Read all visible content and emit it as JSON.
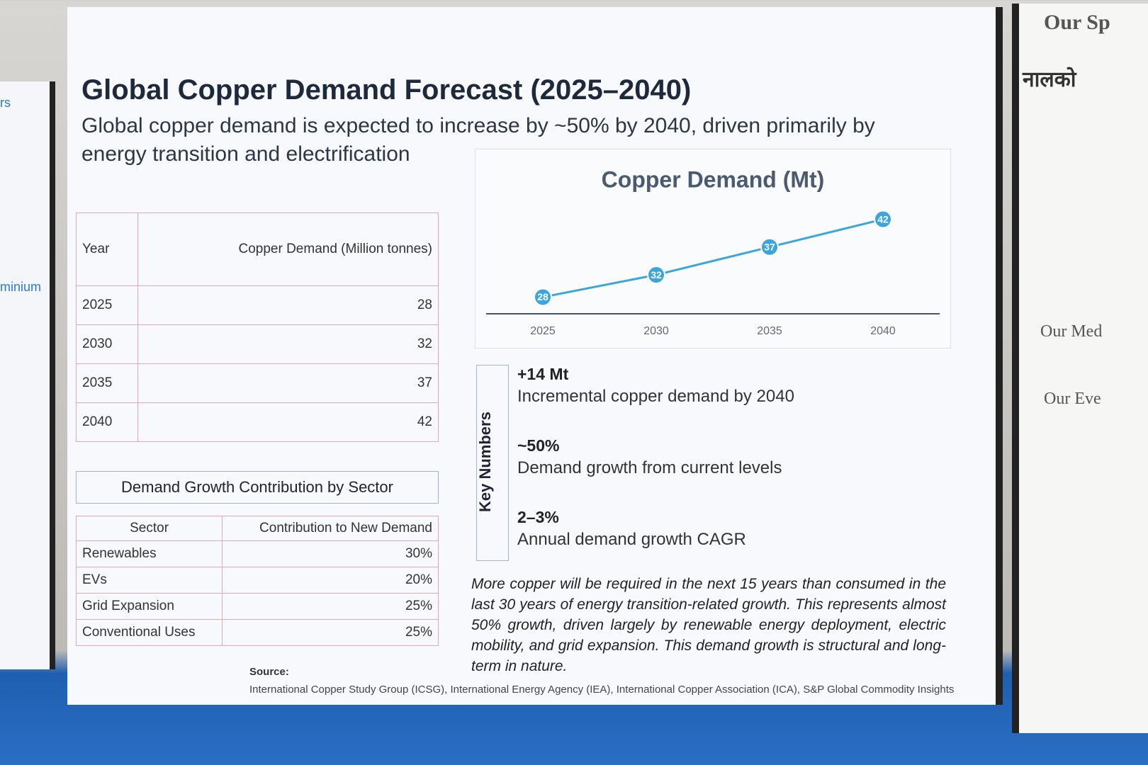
{
  "side_left": {
    "texts": [
      "rs",
      "minium"
    ]
  },
  "side_right": {
    "texts": [
      "Our Sp",
      "नालको",
      "Our Med",
      "Our Eve"
    ]
  },
  "slide": {
    "title": "Global Copper Demand Forecast (2025–2040)",
    "subtitle": "Global copper demand is expected to increase by ~50% by 2040, driven primarily by energy transition and electrification"
  },
  "demand_table": {
    "headers": [
      "Year",
      "Copper Demand (Million tonnes)"
    ],
    "rows": [
      [
        "2025",
        28
      ],
      [
        "2030",
        32
      ],
      [
        "2035",
        37
      ],
      [
        "2040",
        42
      ]
    ]
  },
  "sector_table": {
    "title": "Demand Growth Contribution by Sector",
    "headers": [
      "Sector",
      "Contribution to New Demand"
    ],
    "rows": [
      [
        "Renewables",
        "30%"
      ],
      [
        "EVs",
        "20%"
      ],
      [
        "Grid Expansion",
        "25%"
      ],
      [
        "Conventional Uses",
        "25%"
      ]
    ]
  },
  "chart_data": {
    "type": "line",
    "title": "Copper Demand (Mt)",
    "categories": [
      "2025",
      "2030",
      "2035",
      "2040"
    ],
    "values": [
      28,
      32,
      37,
      42
    ],
    "color": "#3aa6dc",
    "ylim": [
      25,
      45
    ]
  },
  "key_numbers": {
    "title": "Key Numbers",
    "items": [
      {
        "value": "+14 Mt",
        "label": "Incremental copper demand by 2040"
      },
      {
        "value": "~50%",
        "label": "Demand growth from current levels"
      },
      {
        "value": "2–3%",
        "label": "Annual demand growth CAGR"
      }
    ]
  },
  "note": "More copper will be required in the next 15 years than consumed in the last 30 years of energy transition-related growth. This represents almost 50% growth, driven largely by renewable energy deployment, electric mobility, and grid expansion. This demand growth is structural and long-term in nature.",
  "source": {
    "label": "Source:",
    "text": "International Copper Study Group (ICSG), International Energy Agency (IEA), International Copper Association (ICA), S&P Global Commodity Insights"
  }
}
